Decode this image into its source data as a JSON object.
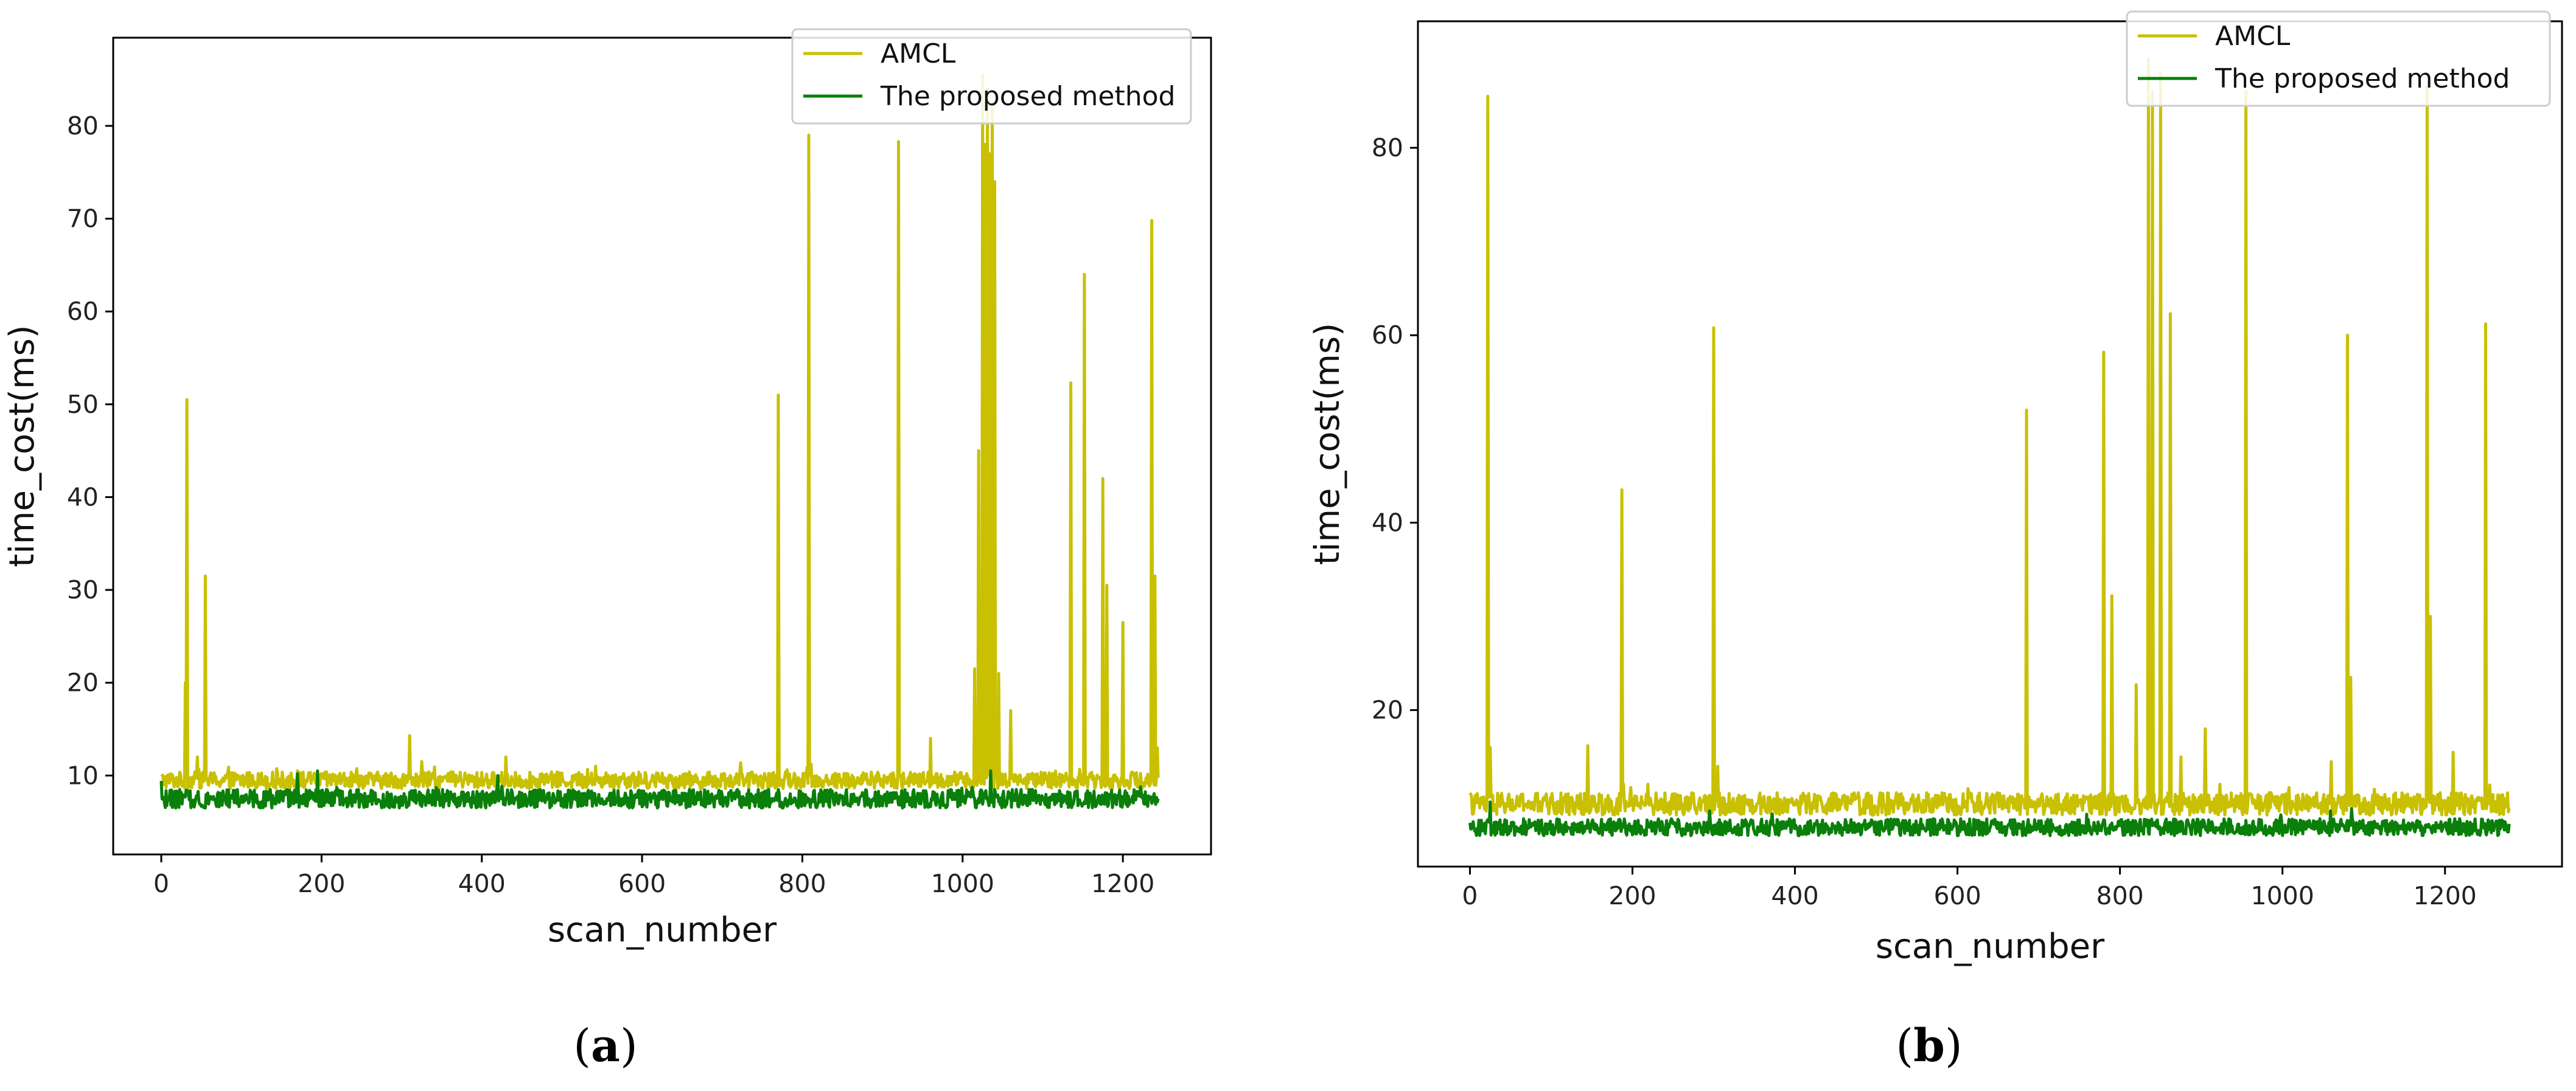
{
  "chart_data": [
    {
      "type": "line",
      "panel": "a",
      "caption": {
        "open": "(",
        "letter": "a",
        "close": ")"
      },
      "xlabel": "scan_number",
      "ylabel": "time_cost(ms)",
      "xlim": [
        -60,
        1310
      ],
      "ylim": [
        1.5,
        89.5
      ],
      "xticks": [
        0,
        200,
        400,
        600,
        800,
        1000,
        1200
      ],
      "yticks": [
        10,
        20,
        30,
        40,
        50,
        60,
        70,
        80
      ],
      "legend_position": "top-right",
      "n_points": 1245,
      "series": [
        {
          "name": "AMCL",
          "color": "#c8c000",
          "baseline": 9.5,
          "noise": 0.9,
          "spikes": [
            [
              30,
              20
            ],
            [
              32,
              50.5
            ],
            [
              45,
              12
            ],
            [
              55,
              31.5
            ],
            [
              170,
              10.5
            ],
            [
              310,
              14.3
            ],
            [
              325,
              11.5
            ],
            [
              430,
              12
            ],
            [
              770,
              51
            ],
            [
              808,
              79
            ],
            [
              920,
              78.3
            ],
            [
              960,
              14
            ],
            [
              1015,
              21.5
            ],
            [
              1020,
              45
            ],
            [
              1025,
              85.5
            ],
            [
              1028,
              78
            ],
            [
              1031,
              84
            ],
            [
              1034,
              77
            ],
            [
              1037,
              82
            ],
            [
              1040,
              74
            ],
            [
              1045,
              21
            ],
            [
              1060,
              17
            ],
            [
              1135,
              52.3
            ],
            [
              1152,
              64
            ],
            [
              1175,
              42
            ],
            [
              1180,
              30.5
            ],
            [
              1200,
              26.5
            ],
            [
              1236,
              69.8
            ],
            [
              1240,
              31.5
            ],
            [
              1243,
              13
            ]
          ]
        },
        {
          "name": "The proposed method",
          "color": "#0a7f0a",
          "baseline": 7.5,
          "noise": 1.0,
          "spikes": [
            [
              170,
              10.2
            ],
            [
              195,
              10.5
            ],
            [
              420,
              10
            ],
            [
              1035,
              10.5
            ]
          ]
        }
      ]
    },
    {
      "type": "line",
      "panel": "b",
      "caption": {
        "open": "(",
        "letter": "b",
        "close": ")"
      },
      "xlabel": "scan_number",
      "ylabel": "time_cost(ms)",
      "xlim": [
        -64,
        1344
      ],
      "ylim": [
        3.3,
        93.5
      ],
      "xticks": [
        0,
        200,
        400,
        600,
        800,
        1000,
        1200
      ],
      "yticks": [
        20,
        40,
        60,
        80
      ],
      "legend_position": "top-right",
      "n_points": 1280,
      "series": [
        {
          "name": "AMCL",
          "color": "#c8c000",
          "baseline": 10,
          "noise": 1.2,
          "spikes": [
            [
              22,
              85.5
            ],
            [
              25,
              16
            ],
            [
              145,
              16.2
            ],
            [
              187,
              43.5
            ],
            [
              300,
              60.8
            ],
            [
              305,
              14
            ],
            [
              685,
              52
            ],
            [
              780,
              58.2
            ],
            [
              790,
              32.2
            ],
            [
              820,
              22.7
            ],
            [
              835,
              89.5
            ],
            [
              840,
              86
            ],
            [
              850,
              88
            ],
            [
              862,
              62.3
            ],
            [
              875,
              15
            ],
            [
              905,
              18
            ],
            [
              955,
              86
            ],
            [
              1060,
              14.5
            ],
            [
              1080,
              60
            ],
            [
              1084,
              23.5
            ],
            [
              1178,
              86.5
            ],
            [
              1182,
              30
            ],
            [
              1210,
              15.5
            ],
            [
              1250,
              61.2
            ],
            [
              1255,
              12
            ]
          ]
        },
        {
          "name": "The proposed method",
          "color": "#0a7f0a",
          "baseline": 7.5,
          "noise": 0.9,
          "spikes": [
            [
              25,
              10.2
            ],
            [
              1085,
              9.5
            ]
          ]
        }
      ]
    }
  ]
}
